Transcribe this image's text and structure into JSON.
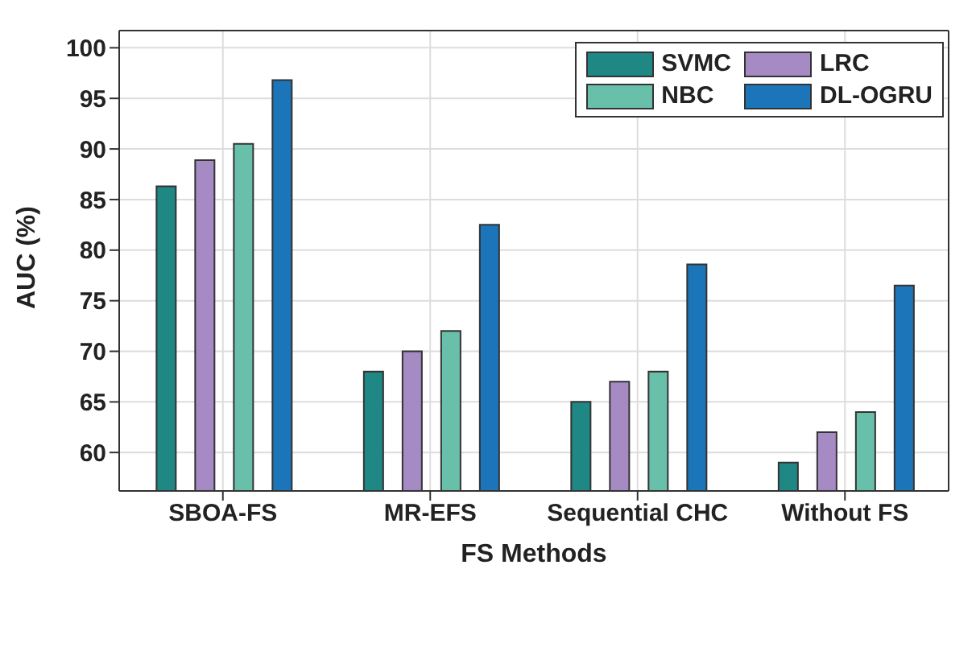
{
  "chart_data": {
    "type": "bar",
    "xlabel": "FS Methods",
    "ylabel": "AUC (%)",
    "categories": [
      "SBOA-FS",
      "MR-EFS",
      "Sequential CHC",
      "Without FS"
    ],
    "series": [
      {
        "name": "SVMC",
        "color": "#1f8784",
        "values": [
          86.3,
          68,
          65,
          59
        ]
      },
      {
        "name": "LRC",
        "color": "#a68ac4",
        "values": [
          88.9,
          70,
          67,
          62
        ]
      },
      {
        "name": "NBC",
        "color": "#69c0aa",
        "values": [
          90.5,
          72,
          68,
          64
        ]
      },
      {
        "name": "DL-OGRU",
        "color": "#1c75b8",
        "values": [
          96.8,
          82.5,
          78.6,
          76.5
        ]
      }
    ],
    "ylim": [
      56.2,
      101.7
    ],
    "yticks": [
      60,
      65,
      70,
      75,
      80,
      85,
      90,
      95,
      100
    ],
    "grid": true,
    "legend": "top right"
  }
}
